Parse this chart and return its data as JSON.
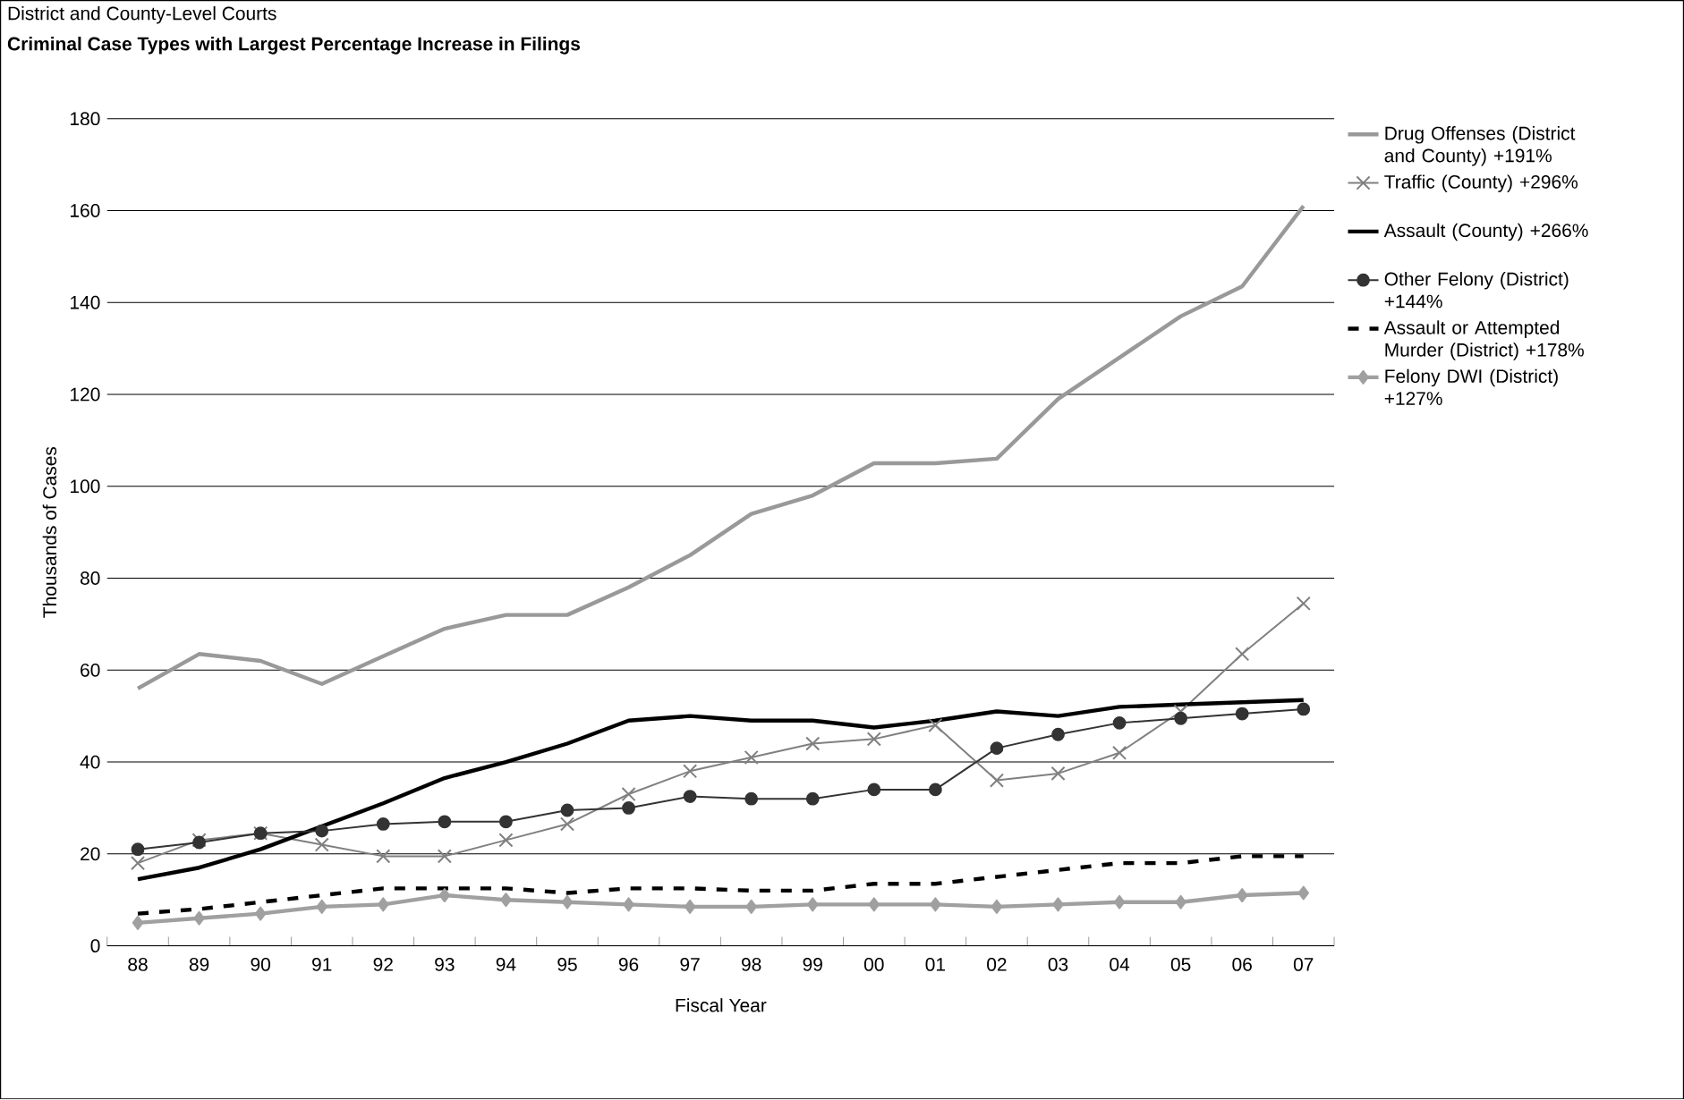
{
  "chart_data": {
    "type": "line",
    "title": "Criminal Case Types with Largest Percentage Increase in Filings",
    "subtitle": "District and County-Level Courts",
    "xlabel": "Fiscal Year",
    "ylabel": "Thousands of Cases",
    "categories": [
      "88",
      "89",
      "90",
      "91",
      "92",
      "93",
      "94",
      "95",
      "96",
      "97",
      "98",
      "99",
      "00",
      "01",
      "02",
      "03",
      "04",
      "05",
      "06",
      "07"
    ],
    "ylim": [
      0,
      180
    ],
    "yticks": [
      0,
      20,
      40,
      60,
      80,
      100,
      120,
      140,
      160,
      180
    ],
    "grid": "y",
    "legend": "right",
    "series": [
      {
        "name": "Drug Offenses (District and County) +191%",
        "color": "#999999",
        "marker": "none",
        "line_style": "solid",
        "values": [
          56,
          63.5,
          62,
          57,
          63,
          69,
          72,
          72,
          78,
          85,
          94,
          98,
          105,
          105,
          106,
          119,
          128,
          137,
          143.5,
          161
        ]
      },
      {
        "name": "Traffic (County) +296%",
        "color": "#808080",
        "marker": "cross",
        "line_style": "solid",
        "values": [
          18,
          23,
          24.5,
          22,
          19.5,
          19.5,
          23,
          26.5,
          33,
          38,
          41,
          44,
          45,
          48,
          36,
          37.5,
          42,
          51,
          63.5,
          74.5
        ]
      },
      {
        "name": "Assault (County) +266%",
        "color": "#000000",
        "marker": "none",
        "line_style": "solid",
        "values": [
          14.5,
          17,
          21,
          26,
          31,
          36.5,
          40,
          44,
          49,
          50,
          49,
          49,
          47.5,
          49,
          51,
          50,
          52,
          52.5,
          53,
          53.5
        ]
      },
      {
        "name": "Other Felony (District) +144%",
        "color": "#333333",
        "marker": "circle",
        "line_style": "solid",
        "values": [
          21,
          22.5,
          24.5,
          25,
          26.5,
          27,
          27,
          29.5,
          30,
          32.5,
          32,
          32,
          34,
          34,
          43,
          46,
          48.5,
          49.5,
          50.5,
          51.5
        ]
      },
      {
        "name": "Assault or Attempted Murder (District) +178%",
        "color": "#000000",
        "marker": "none",
        "line_style": "dashed",
        "values": [
          7,
          8,
          9.5,
          11,
          12.5,
          12.5,
          12.5,
          11.5,
          12.5,
          12.5,
          12,
          12,
          13.5,
          13.5,
          15,
          16.5,
          18,
          18,
          19.5,
          19.5
        ]
      },
      {
        "name": "Felony DWI (District) +127%",
        "color": "#a0a0a0",
        "marker": "diamond",
        "line_style": "solid",
        "values": [
          5,
          6,
          7,
          8.5,
          9,
          11,
          10,
          9.5,
          9,
          8.5,
          8.5,
          9,
          9,
          9,
          8.5,
          9,
          9.5,
          9.5,
          11,
          11.5
        ]
      }
    ]
  }
}
